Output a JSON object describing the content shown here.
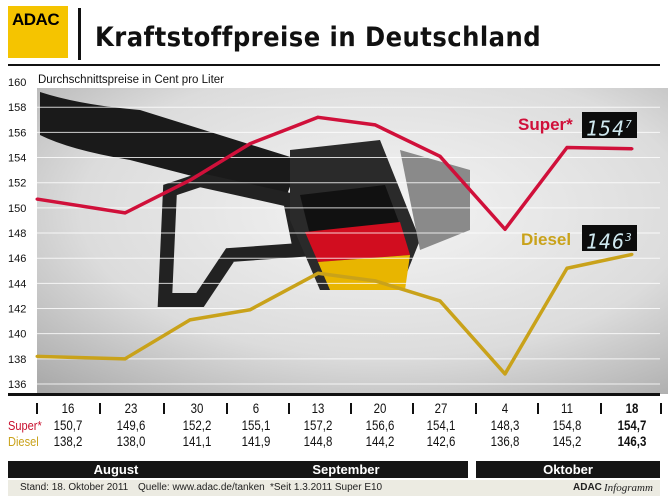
{
  "header": {
    "logo": "ADAC",
    "title": "Kraftstoffpreise in Deutschland"
  },
  "chart_data": {
    "type": "line",
    "title": "Kraftstoffpreise in Deutschland",
    "ylabel": "Durchschnittspreise in Cent pro Liter",
    "ylim": [
      136,
      160
    ],
    "yticks": [
      136,
      138,
      140,
      142,
      144,
      146,
      148,
      150,
      152,
      154,
      156,
      158,
      160
    ],
    "grid": true,
    "categories": [
      "16",
      "23",
      "30",
      "6",
      "13",
      "20",
      "27",
      "4",
      "11",
      "18"
    ],
    "months": [
      {
        "label": "August",
        "span": 3
      },
      {
        "label": "September",
        "span": 4
      },
      {
        "label": "Oktober",
        "span": 3
      }
    ],
    "series": [
      {
        "name": "Super*",
        "color": "#d0103a",
        "values": [
          150.7,
          149.6,
          152.2,
          155.1,
          157.2,
          156.6,
          154.1,
          148.3,
          154.8,
          154.7
        ],
        "labels": [
          "150,7",
          "149,6",
          "152,2",
          "155,1",
          "157,2",
          "156,6",
          "154,1",
          "148,3",
          "154,8",
          "154,7"
        ],
        "display_main": "154",
        "display_decimal": "7"
      },
      {
        "name": "Diesel",
        "color": "#c9a21a",
        "values": [
          138.2,
          138.0,
          141.1,
          141.9,
          144.8,
          144.2,
          142.6,
          136.8,
          145.2,
          146.3
        ],
        "labels": [
          "138,2",
          "138,0",
          "141,1",
          "141,9",
          "144,8",
          "144,2",
          "142,6",
          "136,8",
          "145,2",
          "146,3"
        ],
        "display_main": "146",
        "display_decimal": "3"
      }
    ]
  },
  "footer": {
    "stand": "Stand: 18. Oktober 2011",
    "quelle": "Quelle: www.adac.de/tanken",
    "note": "*Seit 1.3.2011 Super E10",
    "brand": "ADAC",
    "brand_suffix": "Infogramm"
  }
}
